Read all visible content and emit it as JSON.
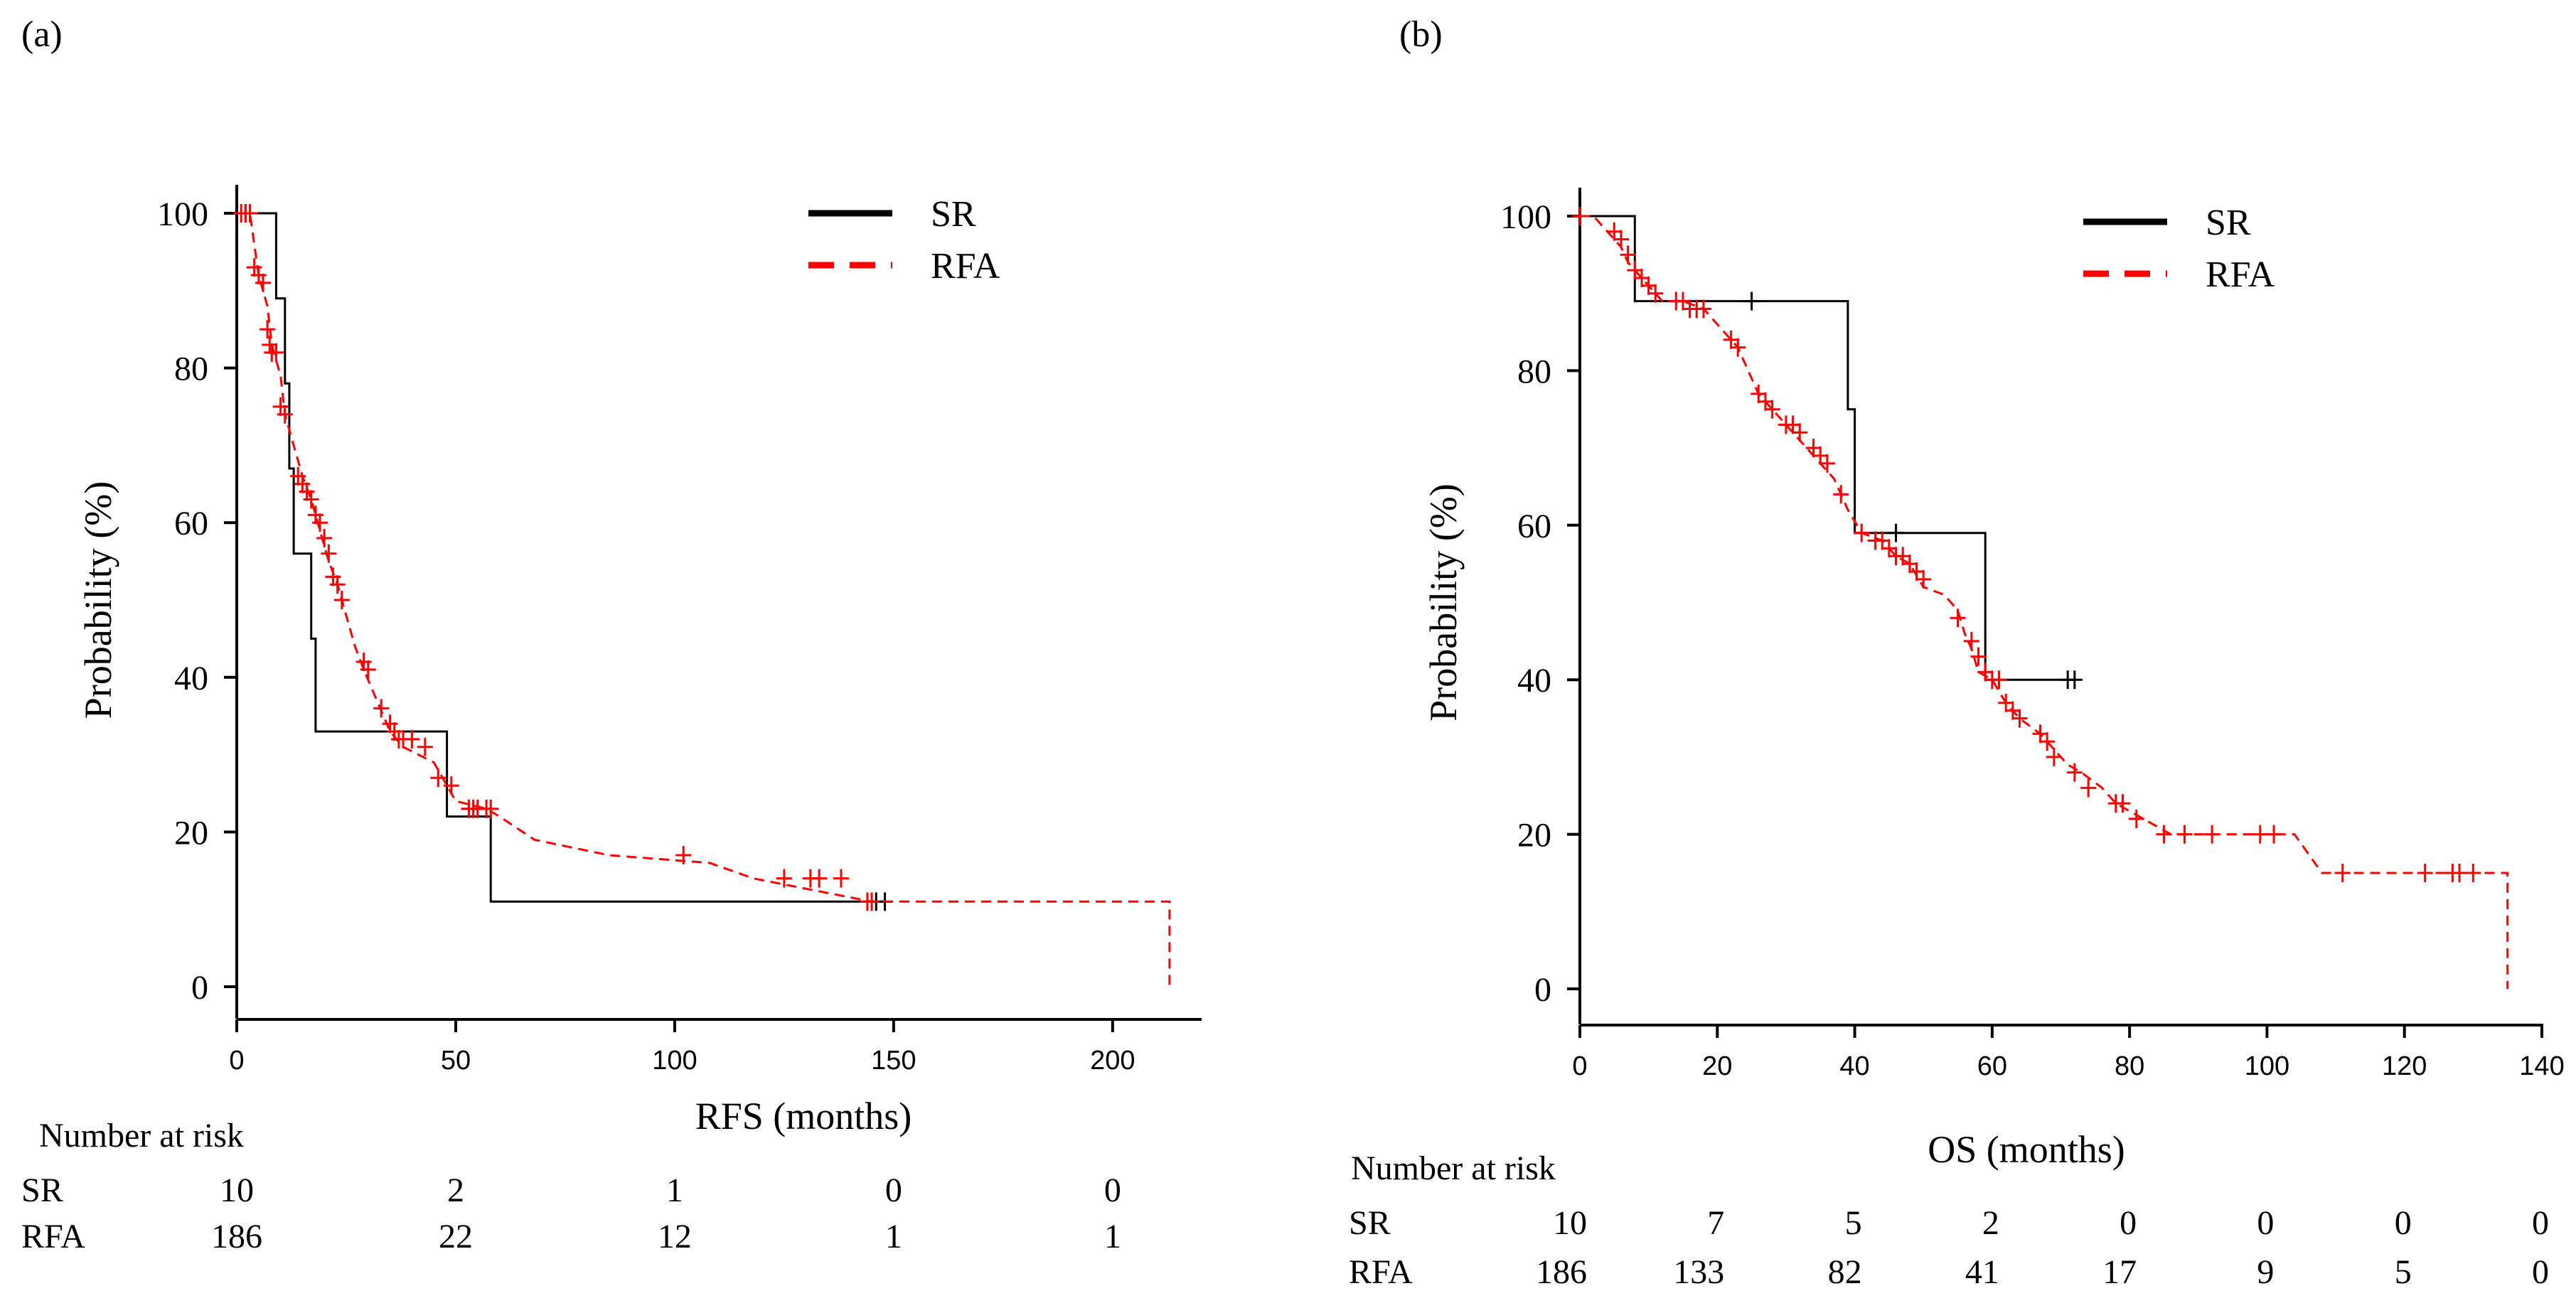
{
  "chart_data": [
    {
      "type": "line",
      "subtype": "kaplan-meier",
      "panel_label": "(a)",
      "xlabel": "RFS (months)",
      "ylabel": "Probability (%)",
      "xlim": [
        0,
        220
      ],
      "ylim": [
        0,
        100
      ],
      "x_ticks": [
        "0",
        "50",
        "100",
        "150",
        "200"
      ],
      "y_ticks": [
        "0",
        "20",
        "40",
        "60",
        "80",
        "100"
      ],
      "legend": {
        "placement": "top-right",
        "entries": [
          "SR",
          "RFA"
        ]
      },
      "series": [
        {
          "name": "SR",
          "style": "solid",
          "color": "#000000",
          "steps": [
            [
              0,
              100
            ],
            [
              9,
              100
            ],
            [
              9,
              89
            ],
            [
              11,
              89
            ],
            [
              11,
              78
            ],
            [
              12,
              78
            ],
            [
              12,
              67
            ],
            [
              13,
              67
            ],
            [
              13,
              56
            ],
            [
              17,
              56
            ],
            [
              17,
              45
            ],
            [
              18,
              45
            ],
            [
              18,
              33
            ],
            [
              48,
              33
            ],
            [
              48,
              22
            ],
            [
              58,
              22
            ],
            [
              58,
              11
            ],
            [
              148,
              11
            ]
          ],
          "censored": [
            [
              2,
              100
            ],
            [
              146,
              11
            ],
            [
              148,
              11
            ]
          ]
        },
        {
          "name": "RFA",
          "style": "dashed",
          "color": "#ff0000",
          "steps": [
            [
              0,
              100
            ],
            [
              3,
              100
            ],
            [
              4,
              96
            ],
            [
              5,
              92
            ],
            [
              7,
              88
            ],
            [
              8,
              83
            ],
            [
              10,
              79
            ],
            [
              11,
              74
            ],
            [
              13,
              70
            ],
            [
              15,
              66
            ],
            [
              17,
              63
            ],
            [
              19,
              59
            ],
            [
              21,
              55
            ],
            [
              23,
              52
            ],
            [
              25,
              48
            ],
            [
              27,
              44
            ],
            [
              29,
              41
            ],
            [
              32,
              37
            ],
            [
              35,
              33
            ],
            [
              38,
              31
            ],
            [
              45,
              29
            ],
            [
              47,
              27
            ],
            [
              50,
              24
            ],
            [
              57,
              23
            ],
            [
              60,
              22
            ],
            [
              68,
              19
            ],
            [
              85,
              17
            ],
            [
              108,
              16
            ],
            [
              118,
              14
            ],
            [
              145,
              11
            ],
            [
              213,
              11
            ],
            [
              213,
              0
            ]
          ],
          "censored": [
            [
              1,
              100
            ],
            [
              2,
              100
            ],
            [
              3,
              100
            ],
            [
              4,
              93
            ],
            [
              5,
              92
            ],
            [
              6,
              91
            ],
            [
              7,
              85
            ],
            [
              7.5,
              83
            ],
            [
              8,
              82
            ],
            [
              9,
              82
            ],
            [
              10,
              75
            ],
            [
              11,
              74
            ],
            [
              14,
              66
            ],
            [
              15,
              65
            ],
            [
              16,
              64
            ],
            [
              17,
              63
            ],
            [
              18,
              61
            ],
            [
              19,
              60
            ],
            [
              20,
              58
            ],
            [
              21,
              56
            ],
            [
              22,
              53
            ],
            [
              23,
              52
            ],
            [
              24,
              50
            ],
            [
              29,
              42
            ],
            [
              30,
              41
            ],
            [
              33,
              36
            ],
            [
              35,
              34
            ],
            [
              36,
              33
            ],
            [
              37,
              32
            ],
            [
              38,
              32
            ],
            [
              40,
              32
            ],
            [
              43,
              31
            ],
            [
              46,
              27
            ],
            [
              49,
              26
            ],
            [
              53,
              23
            ],
            [
              54,
              23
            ],
            [
              55,
              23
            ],
            [
              57,
              23
            ],
            [
              58,
              23
            ],
            [
              102,
              17
            ],
            [
              125,
              14
            ],
            [
              131,
              14
            ],
            [
              133,
              14
            ],
            [
              138,
              14
            ],
            [
              144,
              11
            ],
            [
              145,
              11
            ]
          ]
        }
      ],
      "risk_table": {
        "title": "Number at risk",
        "rows": [
          {
            "label": "SR",
            "values": [
              "10",
              "2",
              "1",
              "0",
              "0"
            ]
          },
          {
            "label": "RFA",
            "values": [
              "186",
              "22",
              "12",
              "1",
              "1"
            ]
          }
        ]
      }
    },
    {
      "type": "line",
      "subtype": "kaplan-meier",
      "panel_label": "(b)",
      "xlabel": "OS (months)",
      "ylabel": "Probability (%)",
      "xlim": [
        0,
        140
      ],
      "ylim": [
        0,
        100
      ],
      "x_ticks": [
        "0",
        "20",
        "40",
        "60",
        "80",
        "100",
        "120",
        "140"
      ],
      "y_ticks": [
        "0",
        "20",
        "40",
        "60",
        "80",
        "100"
      ],
      "legend": {
        "placement": "top-right",
        "entries": [
          "SR",
          "RFA"
        ]
      },
      "series": [
        {
          "name": "SR",
          "style": "solid",
          "color": "#000000",
          "steps": [
            [
              0,
              100
            ],
            [
              8,
              100
            ],
            [
              8,
              89
            ],
            [
              39,
              89
            ],
            [
              39,
              75
            ],
            [
              40,
              75
            ],
            [
              40,
              59
            ],
            [
              59,
              59
            ],
            [
              59,
              40
            ],
            [
              72,
              40
            ]
          ],
          "censored": [
            [
              25,
              89
            ],
            [
              46,
              59
            ],
            [
              71,
              40
            ],
            [
              72,
              40
            ]
          ]
        },
        {
          "name": "RFA",
          "style": "dashed",
          "color": "#ff0000",
          "steps": [
            [
              0,
              100
            ],
            [
              2,
              100
            ],
            [
              4,
              98
            ],
            [
              5,
              97
            ],
            [
              6,
              96
            ],
            [
              7,
              94
            ],
            [
              8,
              93
            ],
            [
              9,
              92
            ],
            [
              11,
              90
            ],
            [
              12,
              89
            ],
            [
              15,
              89
            ],
            [
              18,
              88
            ],
            [
              19,
              87
            ],
            [
              21,
              85
            ],
            [
              22,
              84
            ],
            [
              23,
              83
            ],
            [
              24,
              81
            ],
            [
              25,
              79
            ],
            [
              26,
              77
            ],
            [
              28,
              75
            ],
            [
              29,
              74
            ],
            [
              31,
              72
            ],
            [
              32,
              71
            ],
            [
              33,
              70
            ],
            [
              34,
              69
            ],
            [
              36,
              67
            ],
            [
              37,
              66
            ],
            [
              38,
              64
            ],
            [
              39,
              62
            ],
            [
              41,
              59
            ],
            [
              44,
              58
            ],
            [
              46,
              56
            ],
            [
              48,
              55
            ],
            [
              50,
              52
            ],
            [
              53,
              51
            ],
            [
              55,
              49
            ],
            [
              56,
              46
            ],
            [
              57,
              44
            ],
            [
              58,
              41
            ],
            [
              60,
              40
            ],
            [
              62,
              37
            ],
            [
              64,
              35
            ],
            [
              67,
              33
            ],
            [
              69,
              31
            ],
            [
              71,
              29
            ],
            [
              73,
              28
            ],
            [
              76,
              26
            ],
            [
              78,
              24
            ],
            [
              82,
              22
            ],
            [
              86,
              20
            ],
            [
              104,
              20
            ],
            [
              108,
              15
            ],
            [
              135,
              15
            ],
            [
              135,
              0
            ]
          ],
          "censored": [
            [
              0,
              100
            ],
            [
              5,
              98
            ],
            [
              6,
              97
            ],
            [
              7,
              95
            ],
            [
              8,
              93
            ],
            [
              9,
              92
            ],
            [
              10,
              91
            ],
            [
              11,
              90
            ],
            [
              14,
              89
            ],
            [
              15,
              89
            ],
            [
              16,
              88
            ],
            [
              17,
              88
            ],
            [
              18,
              88
            ],
            [
              22,
              84
            ],
            [
              23,
              83
            ],
            [
              26,
              77
            ],
            [
              27,
              76
            ],
            [
              28,
              75
            ],
            [
              30,
              73
            ],
            [
              31,
              73
            ],
            [
              32,
              72
            ],
            [
              34,
              70
            ],
            [
              35,
              69
            ],
            [
              36,
              68
            ],
            [
              38,
              64
            ],
            [
              41,
              59
            ],
            [
              43,
              58
            ],
            [
              44,
              58
            ],
            [
              45,
              57
            ],
            [
              46,
              56
            ],
            [
              47,
              56
            ],
            [
              48,
              55
            ],
            [
              49,
              54
            ],
            [
              50,
              53
            ],
            [
              55,
              48
            ],
            [
              57,
              45
            ],
            [
              58,
              43
            ],
            [
              59,
              41
            ],
            [
              60,
              40
            ],
            [
              61,
              40
            ],
            [
              62,
              37
            ],
            [
              63,
              36
            ],
            [
              64,
              35
            ],
            [
              67,
              33
            ],
            [
              68,
              32
            ],
            [
              69,
              30
            ],
            [
              72,
              28
            ],
            [
              74,
              26
            ],
            [
              78,
              24
            ],
            [
              79,
              24
            ],
            [
              81,
              22
            ],
            [
              85,
              20
            ],
            [
              88,
              20
            ],
            [
              92,
              20
            ],
            [
              99,
              20
            ],
            [
              101,
              20
            ],
            [
              111,
              15
            ],
            [
              123,
              15
            ],
            [
              127,
              15
            ],
            [
              128,
              15
            ],
            [
              130,
              15
            ]
          ]
        }
      ],
      "risk_table": {
        "title": "Number at risk",
        "rows": [
          {
            "label": "SR",
            "values": [
              "10",
              "7",
              "5",
              "2",
              "0",
              "0",
              "0",
              "0"
            ]
          },
          {
            "label": "RFA",
            "values": [
              "186",
              "133",
              "82",
              "41",
              "17",
              "9",
              "5",
              "0"
            ]
          }
        ]
      }
    }
  ]
}
